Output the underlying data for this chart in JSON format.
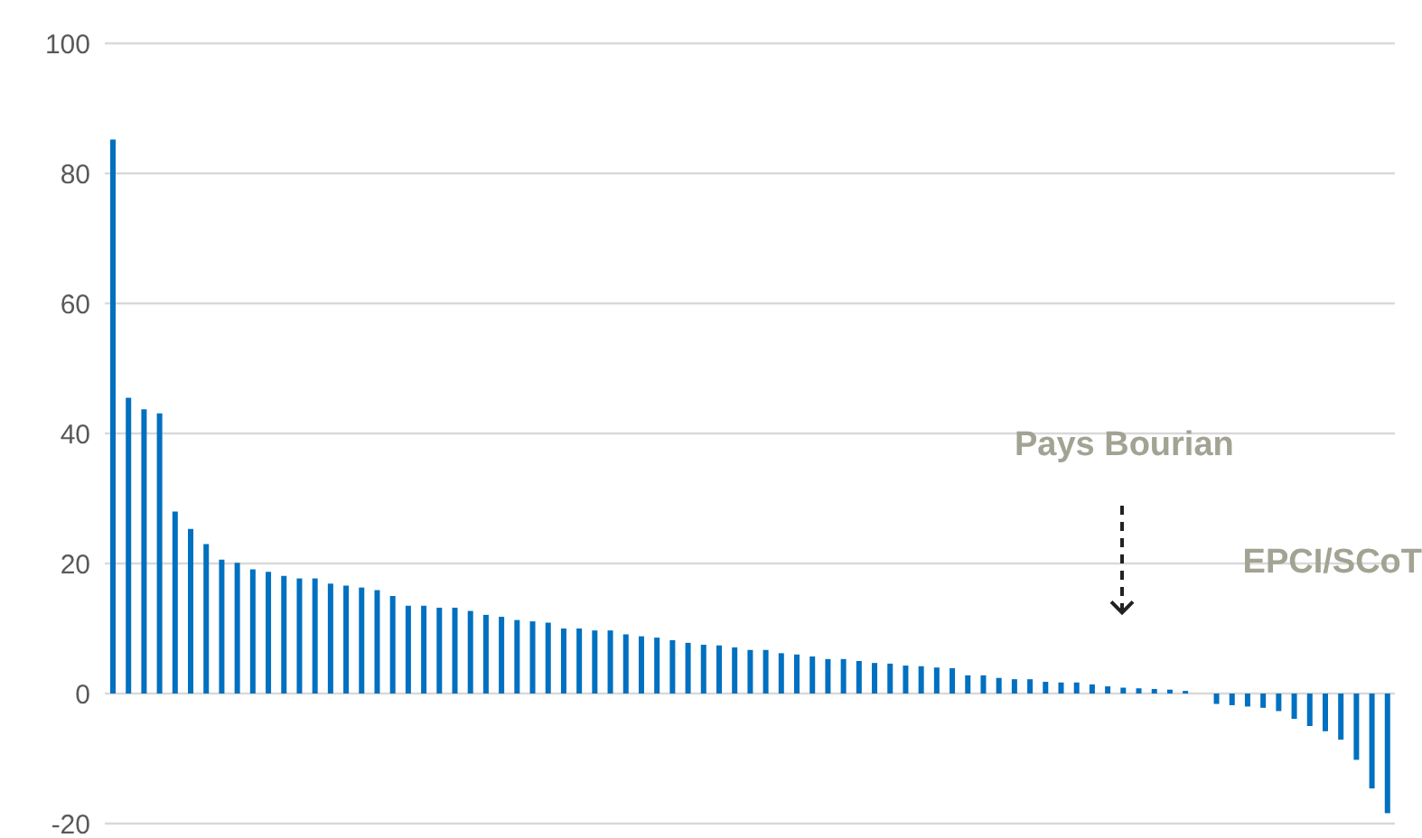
{
  "chart_data": {
    "type": "bar",
    "categories": [
      null,
      null,
      null,
      null,
      null,
      null,
      null,
      null,
      null,
      null,
      null,
      null,
      null,
      null,
      null,
      null,
      null,
      null,
      null,
      null,
      null,
      null,
      null,
      null,
      null,
      null,
      null,
      null,
      null,
      null,
      null,
      null,
      null,
      null,
      null,
      null,
      null,
      null,
      null,
      null,
      null,
      null,
      null,
      null,
      null,
      null,
      null,
      null,
      null,
      null,
      null,
      null,
      null,
      null,
      null,
      null,
      null,
      null,
      null,
      null,
      null,
      null,
      null,
      null,
      null,
      null,
      null,
      null,
      null,
      null,
      null,
      null,
      null,
      null,
      null,
      null,
      null,
      null,
      null,
      null,
      null,
      null,
      null
    ],
    "values": [
      85.2,
      45.5,
      43.7,
      43.1,
      28,
      25.3,
      23,
      20.6,
      20.1,
      19.1,
      18.7,
      18.1,
      17.7,
      17.7,
      16.9,
      16.6,
      16.3,
      15.9,
      15,
      13.5,
      13.5,
      13.2,
      13.2,
      12.7,
      12.1,
      11.8,
      11.3,
      11.1,
      10.9,
      10,
      10,
      9.7,
      9.7,
      9.1,
      8.8,
      8.6,
      8.2,
      7.8,
      7.5,
      7.4,
      7.1,
      6.7,
      6.7,
      6.2,
      6,
      5.7,
      5.3,
      5.3,
      5,
      4.7,
      4.6,
      4.3,
      4.2,
      4,
      3.9,
      2.8,
      2.8,
      2.4,
      2.2,
      2.2,
      1.8,
      1.7,
      1.7,
      1.4,
      1.1,
      0.9,
      0.8,
      0.7,
      0.6,
      0.4,
      null,
      -1.6,
      -1.8,
      -2,
      -2.2,
      -2.7,
      -3.9,
      -5,
      -5.8,
      -7.1,
      -10.2,
      -14.6,
      -18.4
    ],
    "color": "#0070c0",
    "ylim": [
      -20,
      100
    ],
    "yticks": [
      -20,
      0,
      20,
      40,
      60,
      80,
      100
    ],
    "grid": "y",
    "annotations": [
      "Pays Bourian",
      "EPCI/SCoT"
    ]
  }
}
